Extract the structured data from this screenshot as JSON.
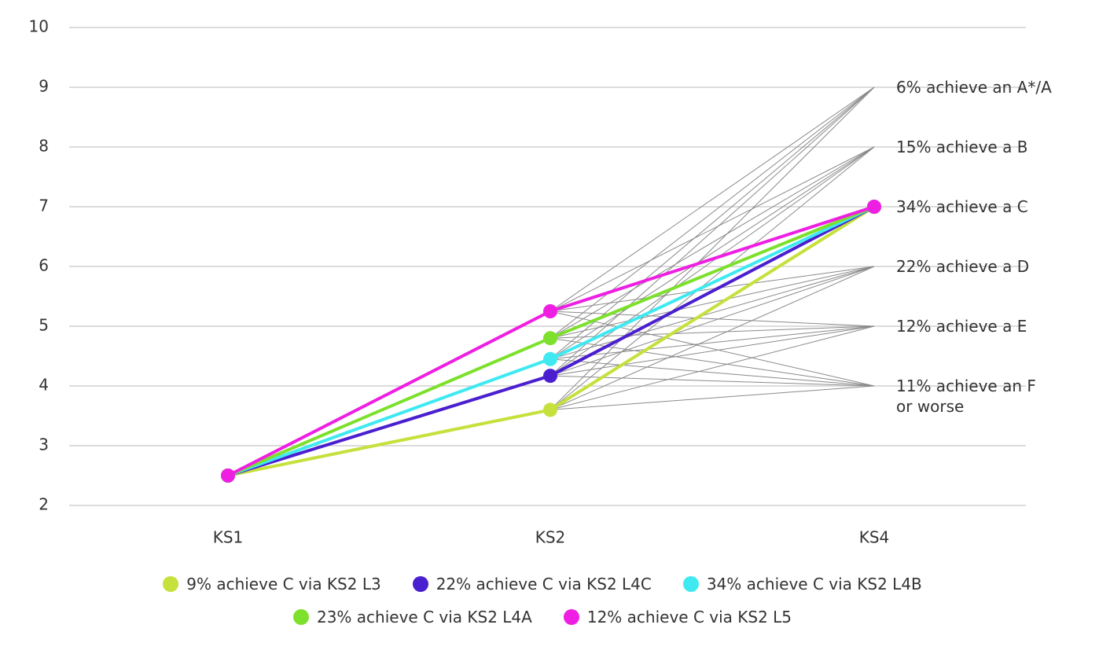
{
  "chart_data": {
    "type": "line",
    "categories": [
      "KS1",
      "KS2",
      "KS4"
    ],
    "series": [
      {
        "name": "9% achieve C via KS2 L3",
        "color": "#c6e03c",
        "values": [
          2.5,
          3.6,
          7
        ]
      },
      {
        "name": "22% achieve C via KS2 L4C",
        "color": "#4a1fcf",
        "values": [
          2.5,
          4.17,
          7
        ]
      },
      {
        "name": "34% achieve C via KS2 L4B",
        "color": "#3fe9f2",
        "values": [
          2.5,
          4.45,
          7
        ]
      },
      {
        "name": "23% achieve C via KS2 L4A",
        "color": "#7de02c",
        "values": [
          2.5,
          4.8,
          7
        ]
      },
      {
        "name": "12% achieve C via KS2 L5",
        "color": "#ee1fe2",
        "values": [
          2.5,
          5.25,
          7
        ]
      }
    ],
    "outcomes": [
      {
        "value": 9,
        "label": "6% achieve an A*/A"
      },
      {
        "value": 8,
        "label": "15% achieve a B"
      },
      {
        "value": 7,
        "label": "34% achieve a C"
      },
      {
        "value": 6,
        "label": "22% achieve a D"
      },
      {
        "value": 5,
        "label": "12% achieve a E"
      },
      {
        "value": 4,
        "label": "11% achieve an F\nor worse"
      }
    ],
    "path_color": "#8a8a8a",
    "ylim": [
      2,
      10
    ],
    "yticks": [
      2,
      3,
      4,
      5,
      6,
      7,
      8,
      9,
      10
    ],
    "grid": true
  }
}
